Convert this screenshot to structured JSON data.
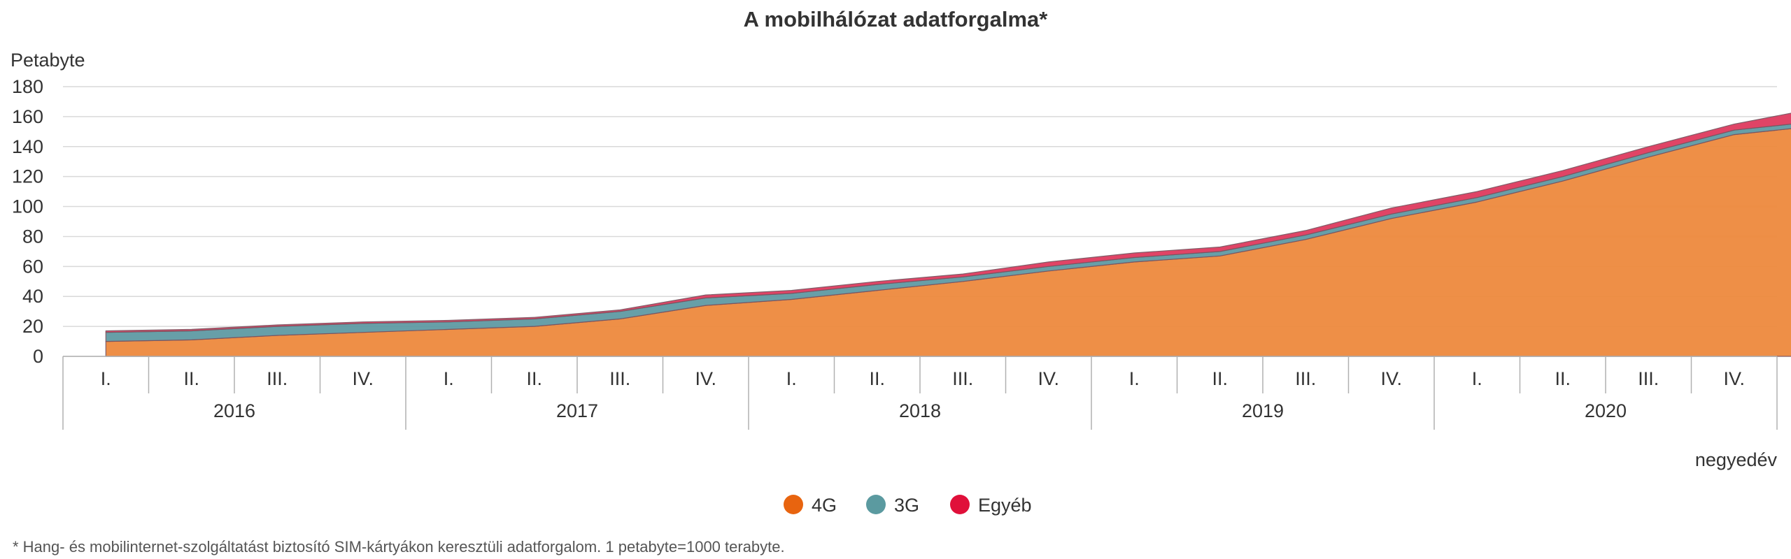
{
  "chart_data": {
    "type": "area",
    "stacked": true,
    "title": "A mobilhálózat adatforgalma*",
    "ylabel": "Petabyte",
    "xlabel": "negyedév",
    "ylim": [
      0,
      180
    ],
    "yticks": [
      0,
      20,
      40,
      60,
      80,
      100,
      120,
      140,
      160,
      180
    ],
    "grid": true,
    "legend_position": "bottom",
    "years": [
      "2016",
      "2017",
      "2018",
      "2019",
      "2020"
    ],
    "quarters": [
      "I.",
      "II.",
      "III.",
      "IV."
    ],
    "series": [
      {
        "name": "4G",
        "color": "#ee8a3e",
        "legend_color": "#e8640f",
        "values": [
          10,
          11,
          14,
          16,
          18,
          20,
          25,
          34,
          38,
          44,
          50,
          57,
          63,
          67,
          78,
          92,
          103,
          117,
          133,
          148,
          154
        ]
      },
      {
        "name": "3G",
        "color": "#5f9aa4",
        "legend_color": "#5b9aa0",
        "values": [
          6,
          6,
          6,
          6,
          5,
          5,
          5,
          5,
          4,
          4,
          3,
          3,
          3,
          3,
          3,
          3,
          3,
          3,
          3,
          3,
          3
        ]
      },
      {
        "name": "Egyéb",
        "color": "#df3a5e",
        "legend_color": "#e0103a",
        "values": [
          1,
          1,
          1,
          1,
          1,
          1,
          1,
          2,
          2,
          2,
          2,
          3,
          3,
          3,
          3,
          4,
          4,
          4,
          4,
          4,
          9
        ]
      }
    ]
  },
  "footnote": "* Hang- és mobilinternet-szolgáltatást biztosító SIM-kártyákon keresztüli adatforgalom. 1 petabyte=1000 terabyte."
}
